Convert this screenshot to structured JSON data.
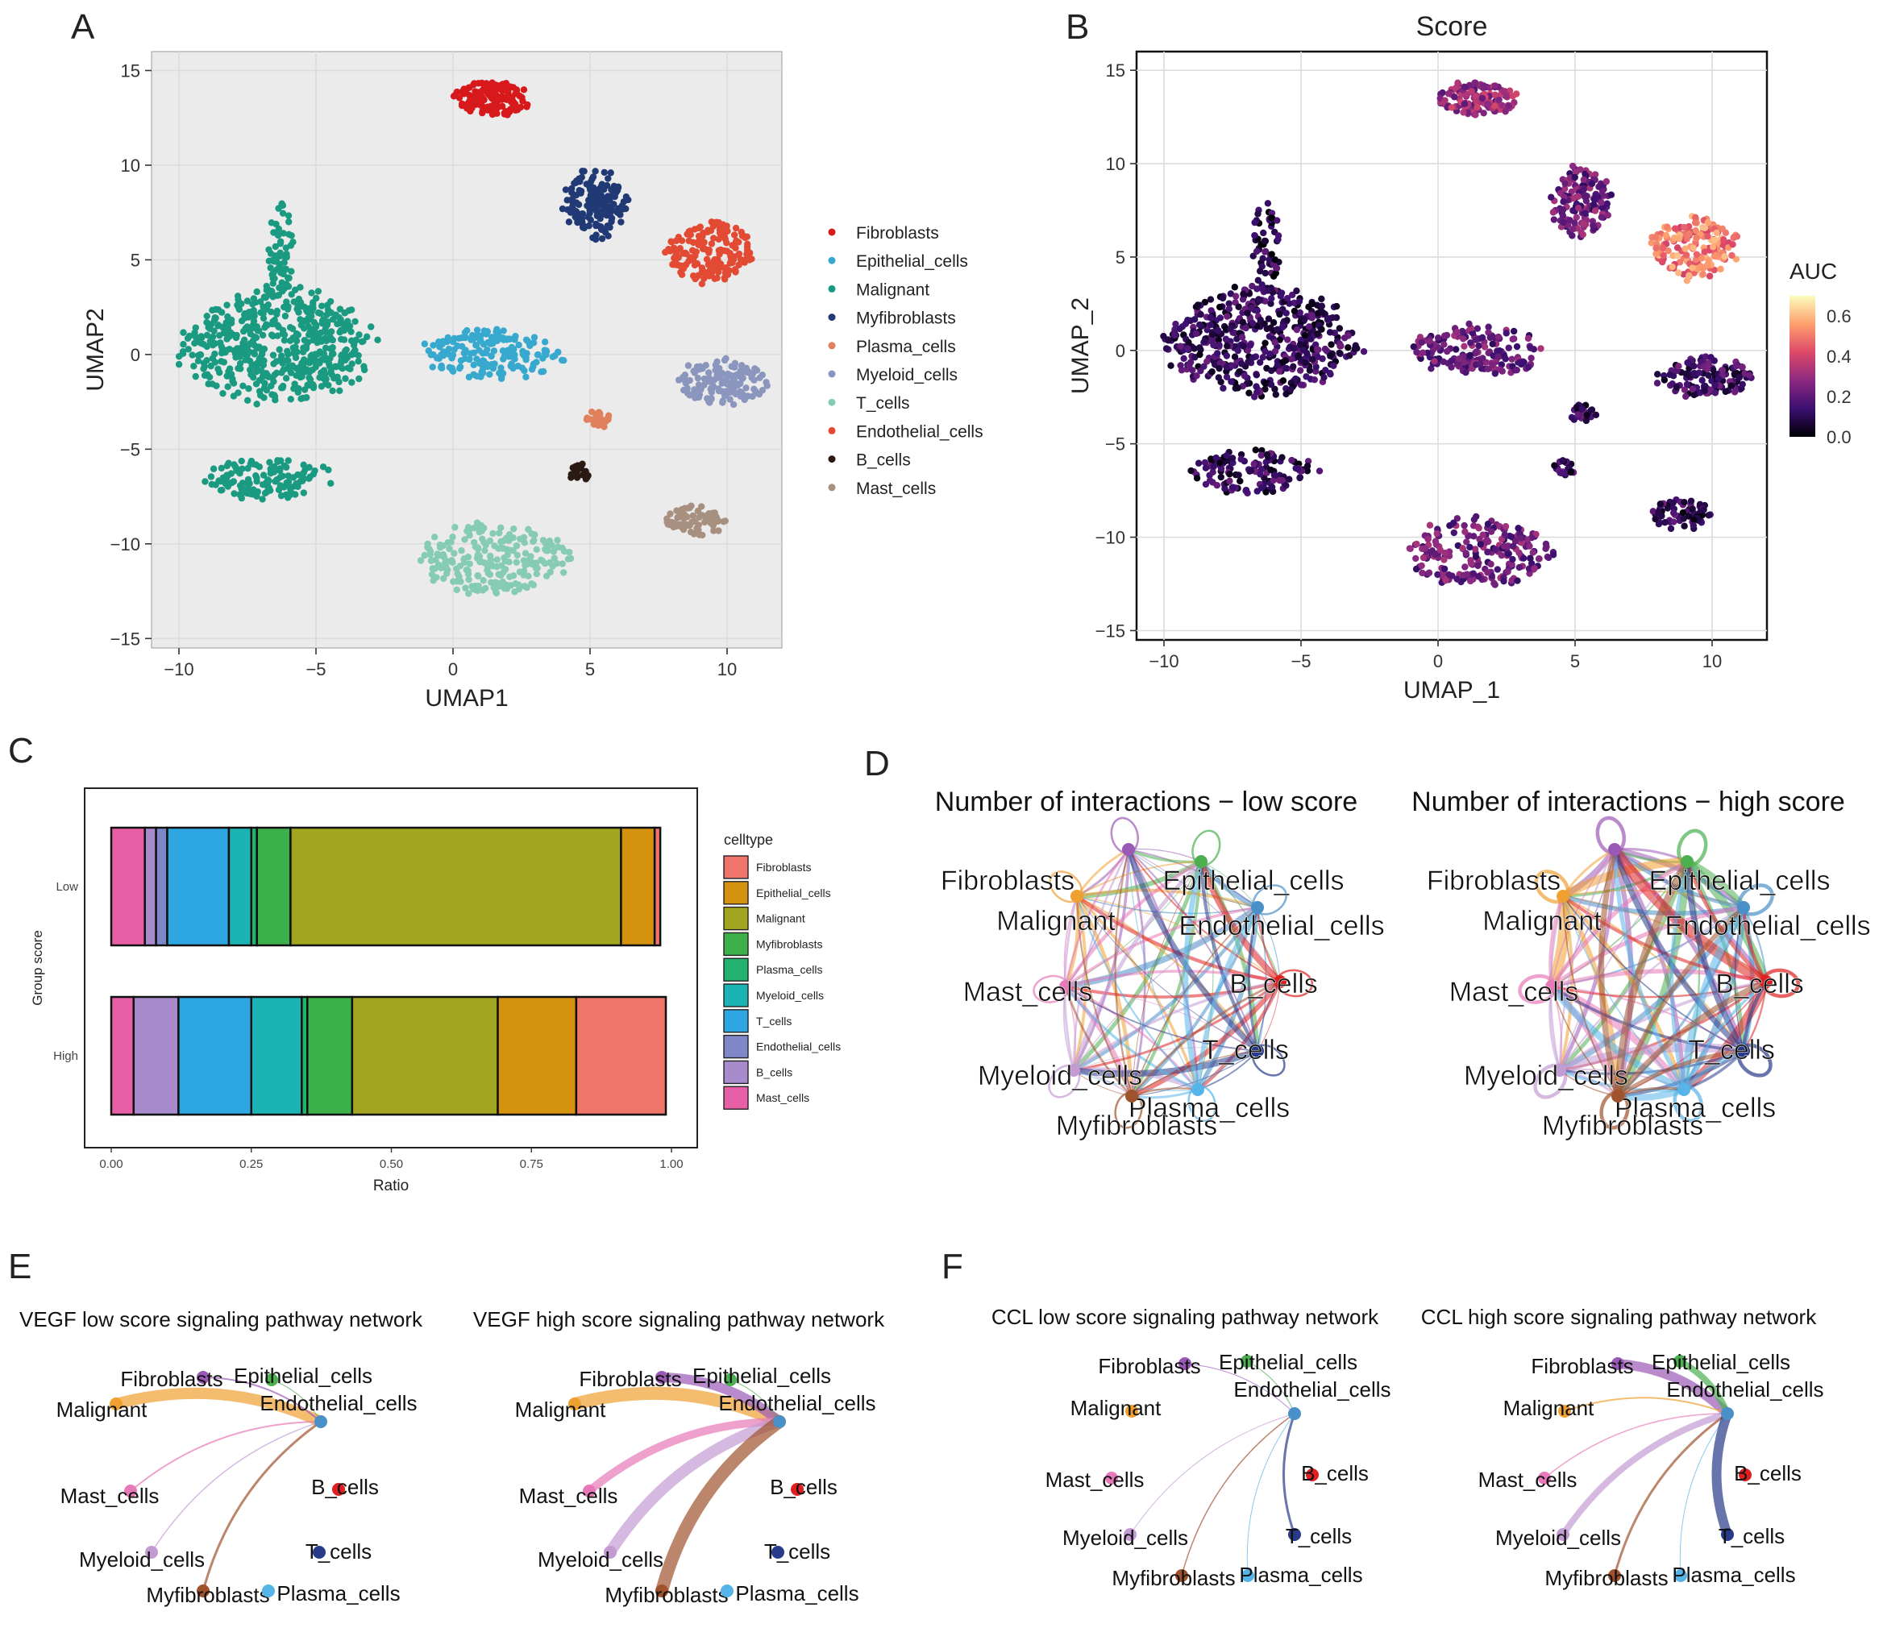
{
  "panel_letters": {
    "a": "A",
    "b": "B",
    "c": "C",
    "d": "D",
    "e": "E",
    "f": "F"
  },
  "colors": {
    "Fibroblasts": "#d7191c",
    "Epithelial_cells": "#38a9ce",
    "Malignant": "#1a9a80",
    "Myfibroblasts": "#213a75",
    "Plasma_cells": "#e0805c",
    "Myeloid_cells": "#8a96bd",
    "T_cells": "#86cbb4",
    "Endothelial_cells": "#e34a33",
    "B_cells": "#2b1a14",
    "Mast_cells": "#a89080"
  },
  "net_colors": {
    "Fibroblasts": "#9b59b6",
    "Epithelial_cells": "#4caf50",
    "Malignant": "#f0a030",
    "Endothelial_cells": "#4a90c8",
    "B_cells": "#e02020",
    "T_cells": "#283a8a",
    "Plasma_cells": "#55b4e8",
    "Myfibroblasts": "#a0522d",
    "Myeloid_cells": "#c39bd3",
    "Mast_cells": "#e879b8"
  },
  "chart_data": [
    {
      "id": "A",
      "type": "scatter",
      "title": "",
      "xlabel": "UMAP1",
      "ylabel": "UMAP2",
      "xlim": [
        -11,
        12
      ],
      "ylim": [
        -15.5,
        16
      ],
      "xticks": [
        -10,
        -5,
        0,
        5,
        10
      ],
      "xtick_labels": [
        "−10",
        "−5",
        "0",
        "5",
        "10"
      ],
      "yticks": [
        -15,
        -10,
        -5,
        0,
        5,
        10,
        15
      ],
      "ytick_labels": [
        "−15",
        "−10",
        "−5",
        "0",
        "5",
        "10",
        "15"
      ],
      "grid": true,
      "legend_position": "right",
      "legend": [
        "Fibroblasts",
        "Epithelial_cells",
        "Malignant",
        "Myfibroblasts",
        "Plasma_cells",
        "Myeloid_cells",
        "T_cells",
        "Endothelial_cells",
        "B_cells",
        "Mast_cells"
      ],
      "clusters": [
        {
          "label": "Malignant",
          "cx": -6.5,
          "cy": 0.5,
          "rx": 3.4,
          "ry": 2.8,
          "n": 520
        },
        {
          "label": "Malignant",
          "cx": -6.3,
          "cy": 5.5,
          "rx": 0.5,
          "ry": 2.5,
          "n": 60
        },
        {
          "label": "Malignant",
          "cx": -6.8,
          "cy": -6.5,
          "rx": 2.2,
          "ry": 1.1,
          "n": 130
        },
        {
          "label": "Fibroblasts",
          "cx": 1.5,
          "cy": 13.5,
          "rx": 1.4,
          "ry": 0.9,
          "n": 140
        },
        {
          "label": "Myfibroblasts",
          "cx": 5.2,
          "cy": 8.0,
          "rx": 1.1,
          "ry": 1.8,
          "n": 150
        },
        {
          "label": "Endothelial_cells",
          "cx": 9.3,
          "cy": 5.5,
          "rx": 1.6,
          "ry": 1.6,
          "n": 170
        },
        {
          "label": "Epithelial_cells",
          "cx": 1.5,
          "cy": 0.0,
          "rx": 2.5,
          "ry": 1.3,
          "n": 170
        },
        {
          "label": "Myeloid_cells",
          "cx": 9.7,
          "cy": -1.5,
          "rx": 1.6,
          "ry": 1.2,
          "n": 130
        },
        {
          "label": "Plasma_cells",
          "cx": 5.3,
          "cy": -3.4,
          "rx": 0.45,
          "ry": 0.5,
          "n": 25
        },
        {
          "label": "B_cells",
          "cx": 4.6,
          "cy": -6.3,
          "rx": 0.35,
          "ry": 0.55,
          "n": 25
        },
        {
          "label": "T_cells",
          "cx": 1.5,
          "cy": -10.8,
          "rx": 2.6,
          "ry": 1.8,
          "n": 220
        },
        {
          "label": "Mast_cells",
          "cx": 8.8,
          "cy": -8.8,
          "rx": 1.1,
          "ry": 0.8,
          "n": 70
        }
      ]
    },
    {
      "id": "B",
      "type": "scatter",
      "title": "Score",
      "xlabel": "UMAP_1",
      "ylabel": "UMAP_2",
      "xlim": [
        -11,
        12
      ],
      "ylim": [
        -15.5,
        16
      ],
      "xticks": [
        -10,
        -5,
        0,
        5,
        10
      ],
      "xtick_labels": [
        "−10",
        "−5",
        "0",
        "5",
        "10"
      ],
      "yticks": [
        -15,
        -10,
        -5,
        0,
        5,
        10,
        15
      ],
      "ytick_labels": [
        "−15",
        "−10",
        "−5",
        "0",
        "5",
        "10",
        "15"
      ],
      "grid": true,
      "colorbar": {
        "title": "AUC",
        "ticks": [
          "0.6",
          "0.4",
          "0.2",
          "0.0"
        ],
        "tick_values": [
          0.6,
          0.4,
          0.2,
          0.0
        ],
        "range": [
          0,
          0.7
        ],
        "colors": [
          "#000004",
          "#3b0f70",
          "#8c2981",
          "#de4968",
          "#fe9f6d",
          "#fcfdbf"
        ]
      },
      "clusters": [
        {
          "label": "Malignant",
          "auc": 0.12,
          "cx": -6.5,
          "cy": 0.5,
          "rx": 3.4,
          "ry": 2.8,
          "n": 520
        },
        {
          "label": "Malignant",
          "auc": 0.1,
          "cx": -6.3,
          "cy": 5.5,
          "rx": 0.5,
          "ry": 2.5,
          "n": 60
        },
        {
          "label": "Malignant",
          "auc": 0.12,
          "cx": -6.8,
          "cy": -6.5,
          "rx": 2.2,
          "ry": 1.1,
          "n": 130
        },
        {
          "label": "Fibroblasts",
          "auc": 0.3,
          "cx": 1.5,
          "cy": 13.5,
          "rx": 1.4,
          "ry": 0.9,
          "n": 140
        },
        {
          "label": "Myfibroblasts",
          "auc": 0.22,
          "cx": 5.2,
          "cy": 8.0,
          "rx": 1.1,
          "ry": 1.8,
          "n": 150
        },
        {
          "label": "Endothelial_cells",
          "auc": 0.5,
          "cx": 9.3,
          "cy": 5.5,
          "rx": 1.6,
          "ry": 1.6,
          "n": 170
        },
        {
          "label": "Epithelial_cells",
          "auc": 0.22,
          "cx": 1.5,
          "cy": 0.0,
          "rx": 2.5,
          "ry": 1.3,
          "n": 170
        },
        {
          "label": "Myeloid_cells",
          "auc": 0.14,
          "cx": 9.7,
          "cy": -1.5,
          "rx": 1.6,
          "ry": 1.2,
          "n": 130
        },
        {
          "label": "Plasma_cells",
          "auc": 0.12,
          "cx": 5.3,
          "cy": -3.4,
          "rx": 0.45,
          "ry": 0.5,
          "n": 25
        },
        {
          "label": "B_cells",
          "auc": 0.12,
          "cx": 4.6,
          "cy": -6.3,
          "rx": 0.35,
          "ry": 0.55,
          "n": 25
        },
        {
          "label": "T_cells",
          "auc": 0.22,
          "cx": 1.5,
          "cy": -10.8,
          "rx": 2.6,
          "ry": 1.8,
          "n": 220
        },
        {
          "label": "Mast_cells",
          "auc": 0.12,
          "cx": 8.8,
          "cy": -8.8,
          "rx": 1.1,
          "ry": 0.8,
          "n": 70
        }
      ]
    },
    {
      "id": "C",
      "type": "bar",
      "orientation": "horizontal",
      "stacked": true,
      "xlabel": "Ratio",
      "ylabel": "Group score",
      "xlim": [
        0,
        1
      ],
      "xticks": [
        0,
        0.25,
        0.5,
        0.75,
        1.0
      ],
      "xtick_labels": [
        "0.00",
        "0.25",
        "0.50",
        "0.75",
        "1.00"
      ],
      "categories": [
        "Low",
        "High"
      ],
      "legend_title": "celltype",
      "legend_position": "right",
      "stack_order": [
        "Mast_cells",
        "B_cells",
        "Endothelial_cells",
        "T_cells",
        "Myeloid_cells",
        "Plasma_cells",
        "Myfibroblasts",
        "Malignant",
        "Epithelial_cells",
        "Fibroblasts"
      ],
      "series": [
        {
          "name": "Fibroblasts",
          "color": "#ef756b",
          "values": [
            0.01,
            0.16
          ]
        },
        {
          "name": "Epithelial_cells",
          "color": "#d4920f",
          "values": [
            0.06,
            0.14
          ]
        },
        {
          "name": "Malignant",
          "color": "#a3a520",
          "values": [
            0.59,
            0.26
          ]
        },
        {
          "name": "Myfibroblasts",
          "color": "#3cb04a",
          "values": [
            0.06,
            0.08
          ]
        },
        {
          "name": "Plasma_cells",
          "color": "#23b36e",
          "values": [
            0.01,
            0.01
          ]
        },
        {
          "name": "Myeloid_cells",
          "color": "#1bb3b3",
          "values": [
            0.04,
            0.09
          ]
        },
        {
          "name": "T_cells",
          "color": "#2ea6e2",
          "values": [
            0.11,
            0.13
          ]
        },
        {
          "name": "Endothelial_cells",
          "color": "#7e87c8",
          "values": [
            0.02,
            0.0
          ]
        },
        {
          "name": "B_cells",
          "color": "#a78bcc",
          "values": [
            0.02,
            0.08
          ]
        },
        {
          "name": "Mast_cells",
          "color": "#e75fa7",
          "values": [
            0.06,
            0.04
          ]
        }
      ]
    },
    {
      "id": "D",
      "type": "network",
      "networks": [
        {
          "title": "Number of interactions − low score",
          "nodes": [
            "Fibroblasts",
            "Epithelial_cells",
            "Malignant",
            "Endothelial_cells",
            "Mast_cells",
            "B_cells",
            "Myeloid_cells",
            "T_cells",
            "Plasma_cells",
            "Myfibroblasts"
          ],
          "edge_weight_scale": 1.0
        },
        {
          "title": "Number of interactions − high score",
          "nodes": [
            "Fibroblasts",
            "Epithelial_cells",
            "Malignant",
            "Endothelial_cells",
            "Mast_cells",
            "B_cells",
            "Myeloid_cells",
            "T_cells",
            "Plasma_cells",
            "Myfibroblasts"
          ],
          "edge_weight_scale": 1.8
        }
      ]
    },
    {
      "id": "E",
      "type": "network",
      "target": "Endothelial_cells",
      "networks": [
        {
          "title": "VEGF low score signaling pathway network",
          "nodes": [
            "Fibroblasts",
            "Epithelial_cells",
            "Malignant",
            "Endothelial_cells",
            "Mast_cells",
            "B_cells",
            "Myeloid_cells",
            "T_cells",
            "Myfibroblasts",
            "Plasma_cells"
          ],
          "edges": [
            {
              "source": "Malignant",
              "weight": 14
            },
            {
              "source": "Fibroblasts",
              "weight": 2
            },
            {
              "source": "Epithelial_cells",
              "weight": 1
            },
            {
              "source": "Mast_cells",
              "weight": 2
            },
            {
              "source": "Myeloid_cells",
              "weight": 1.5
            },
            {
              "source": "Myfibroblasts",
              "weight": 3
            }
          ]
        },
        {
          "title": "VEGF high score signaling pathway network",
          "nodes": [
            "Fibroblasts",
            "Epithelial_cells",
            "Malignant",
            "Endothelial_cells",
            "Mast_cells",
            "B_cells",
            "Myeloid_cells",
            "T_cells",
            "Myfibroblasts",
            "Plasma_cells"
          ],
          "edges": [
            {
              "source": "Malignant",
              "weight": 16
            },
            {
              "source": "Fibroblasts",
              "weight": 12
            },
            {
              "source": "Epithelial_cells",
              "weight": 1
            },
            {
              "source": "Mast_cells",
              "weight": 10
            },
            {
              "source": "Myeloid_cells",
              "weight": 14
            },
            {
              "source": "Myfibroblasts",
              "weight": 16
            }
          ]
        }
      ]
    },
    {
      "id": "F",
      "type": "network",
      "target": "Endothelial_cells",
      "networks": [
        {
          "title": "CCL low score signaling pathway network",
          "nodes": [
            "Fibroblasts",
            "Epithelial_cells",
            "Malignant",
            "Endothelial_cells",
            "Mast_cells",
            "B_cells",
            "Myeloid_cells",
            "T_cells",
            "Myfibroblasts",
            "Plasma_cells"
          ],
          "edges": [
            {
              "source": "Fibroblasts",
              "weight": 1
            },
            {
              "source": "Epithelial_cells",
              "weight": 1
            },
            {
              "source": "Myeloid_cells",
              "weight": 1
            },
            {
              "source": "Myfibroblasts",
              "weight": 1.5
            },
            {
              "source": "Plasma_cells",
              "weight": 1
            },
            {
              "source": "T_cells",
              "weight": 3
            }
          ]
        },
        {
          "title": "CCL high score signaling pathway network",
          "nodes": [
            "Fibroblasts",
            "Epithelial_cells",
            "Malignant",
            "Endothelial_cells",
            "Mast_cells",
            "B_cells",
            "Myeloid_cells",
            "T_cells",
            "Myfibroblasts",
            "Plasma_cells"
          ],
          "edges": [
            {
              "source": "Fibroblasts",
              "weight": 12
            },
            {
              "source": "Epithelial_cells",
              "weight": 8
            },
            {
              "source": "Malignant",
              "weight": 2
            },
            {
              "source": "Mast_cells",
              "weight": 1.5
            },
            {
              "source": "Myeloid_cells",
              "weight": 8
            },
            {
              "source": "Myfibroblasts",
              "weight": 3
            },
            {
              "source": "Plasma_cells",
              "weight": 1
            },
            {
              "source": "T_cells",
              "weight": 12
            }
          ]
        }
      ]
    }
  ]
}
